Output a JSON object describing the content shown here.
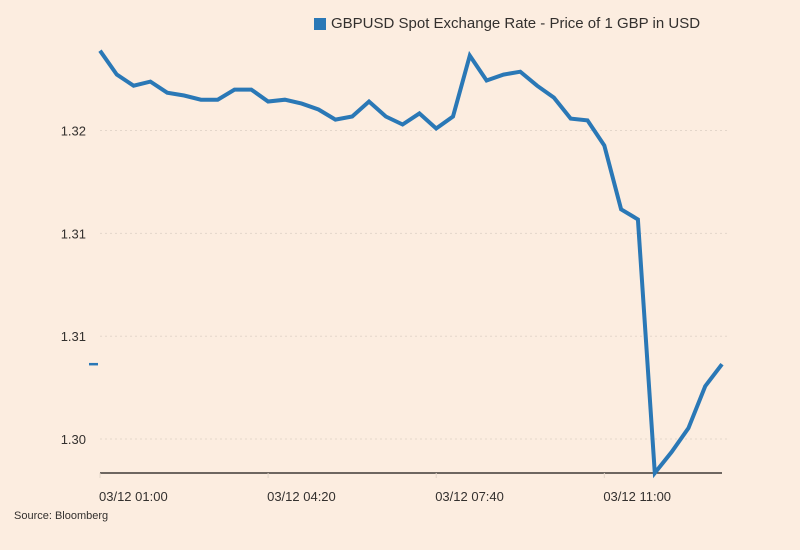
{
  "chart_data": {
    "type": "line",
    "title": "",
    "xlabel": "",
    "ylabel": "",
    "legend": {
      "position": "top-right",
      "entries": [
        "GBPUSD Spot Exchange Rate - Price of 1 GBP in USD"
      ]
    },
    "series": [
      {
        "name": "GBPUSD Spot Exchange Rate - Price of 1 GBP in USD",
        "color": "#2a78b6",
        "values": [
          1.32388,
          1.32272,
          1.32218,
          1.32238,
          1.32184,
          1.3217,
          1.3215,
          1.3215,
          1.32199,
          1.32199,
          1.32141,
          1.3215,
          1.32131,
          1.32102,
          1.32053,
          1.32068,
          1.32141,
          1.32068,
          1.32029,
          1.32083,
          1.3201,
          1.32068,
          1.32364,
          1.32243,
          1.32272,
          1.32286,
          1.32218,
          1.3216,
          1.32058,
          1.32049,
          1.31927,
          1.31617,
          1.31568,
          1.30335,
          1.30437,
          1.30553,
          1.30757,
          1.30864
        ]
      }
    ],
    "x_step_minutes": 20,
    "x_start_index": 0,
    "x_ticks": [
      {
        "index": 0,
        "label": "03/12 01:00"
      },
      {
        "index": 10,
        "label": "03/12 04:20"
      },
      {
        "index": 20,
        "label": "03/12 07:40"
      },
      {
        "index": 30,
        "label": "03/12 11:00"
      }
    ],
    "y_ticks": [
      {
        "value": 1.32,
        "label": "1.32"
      },
      {
        "value": 1.315,
        "label": "1.31"
      },
      {
        "value": 1.31,
        "label": "1.31"
      },
      {
        "value": 1.305,
        "label": "1.30"
      }
    ],
    "ylim": [
      1.30335,
      1.3244
    ],
    "grid": true,
    "last_value_marker": true
  },
  "legend_label": "GBPUSD Spot Exchange Rate - Price of 1 GBP in USD",
  "source": "Source: Bloomberg",
  "colors": {
    "background": "#fcede0",
    "line": "#2a78b6",
    "grid": "#e3d6ca",
    "axis": "#1a1714"
  }
}
